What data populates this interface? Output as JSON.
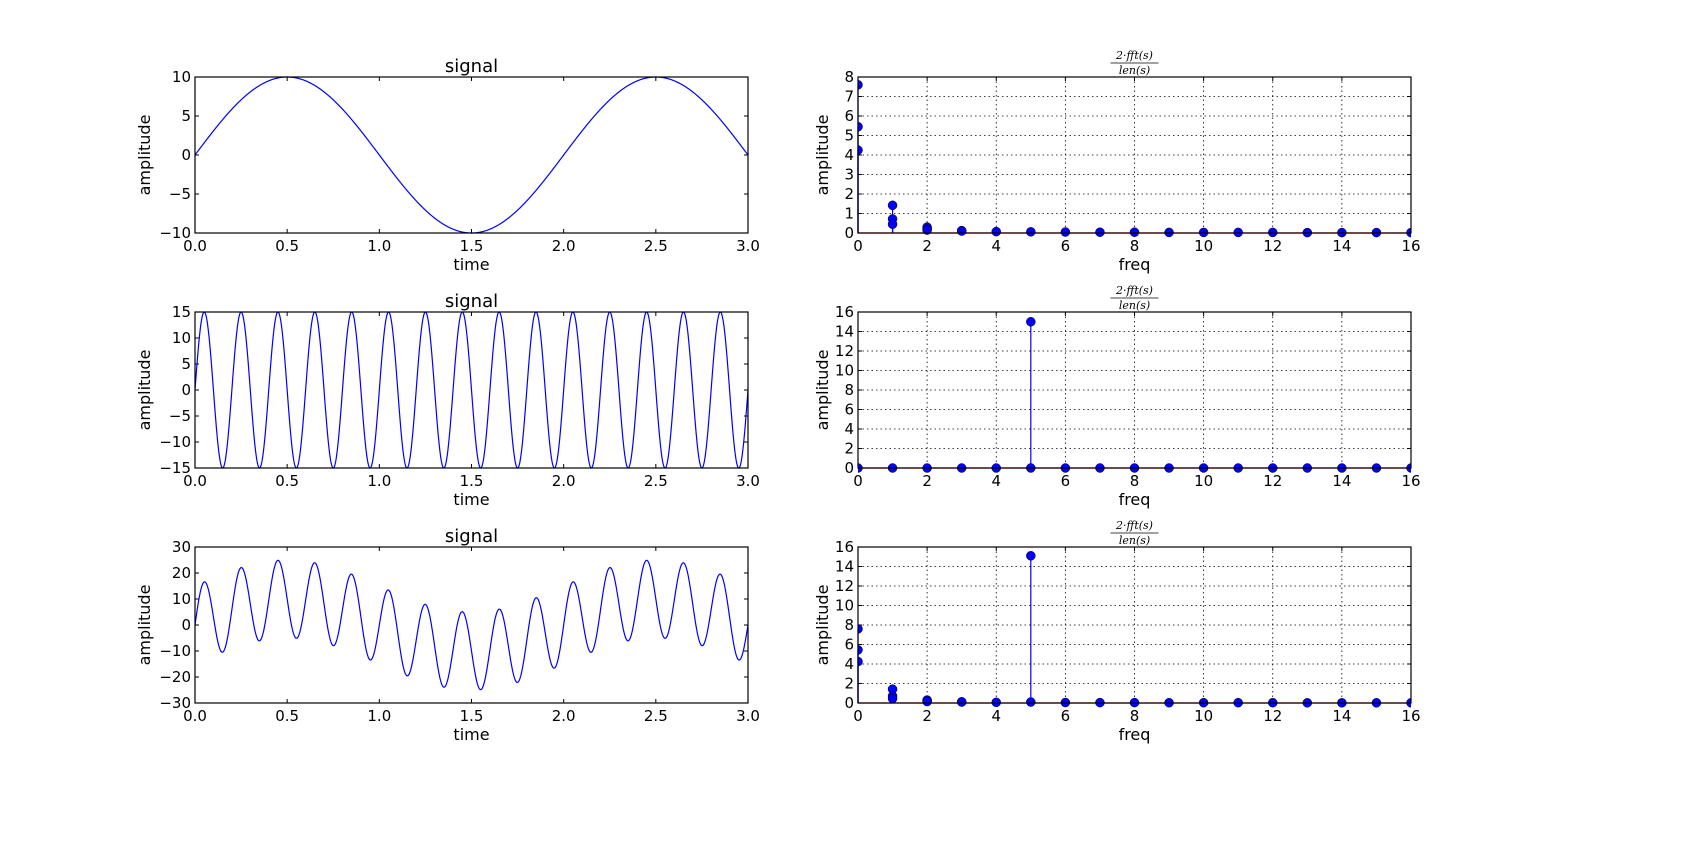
{
  "chart_data": [
    {
      "type": "line",
      "title": "signal",
      "xlabel": "time",
      "ylabel": "amplitude",
      "xlim": [
        0,
        3
      ],
      "ylim": [
        -10,
        10
      ],
      "xticks": [
        "0.0",
        "0.5",
        "1.0",
        "1.5",
        "2.0",
        "2.5",
        "3.0"
      ],
      "yticks": [
        "−10",
        "−5",
        "0",
        "5",
        "10"
      ],
      "ytick_values": [
        -10,
        -5,
        0,
        5,
        10
      ],
      "grid": false,
      "color": "#0000ff",
      "components": [
        {
          "amplitude": 10,
          "freq": 0.5
        }
      ]
    },
    {
      "type": "stem",
      "title_numerator": "2·fft(s)",
      "title_denominator": "len(s)",
      "xlabel": "freq",
      "ylabel": "amplitude",
      "xlim": [
        0,
        16
      ],
      "ylim": [
        0,
        8
      ],
      "xticks": [
        "0",
        "2",
        "4",
        "6",
        "8",
        "10",
        "12",
        "14",
        "16"
      ],
      "yticks": [
        "0",
        "1",
        "2",
        "3",
        "4",
        "5",
        "6",
        "7",
        "8"
      ],
      "ytick_values": [
        0,
        1,
        2,
        3,
        4,
        5,
        6,
        7,
        8
      ],
      "grid": true,
      "color": "#0000ff",
      "baseline_color": "#ff0000",
      "points": [
        [
          0,
          7.6
        ],
        [
          0,
          5.45
        ],
        [
          0,
          4.25
        ],
        [
          1,
          1.42
        ],
        [
          1,
          0.72
        ],
        [
          1,
          0.45
        ],
        [
          2,
          0.3
        ],
        [
          2,
          0.2
        ],
        [
          2,
          0.15
        ],
        [
          3,
          0.12
        ],
        [
          3,
          0.1
        ],
        [
          4,
          0.07
        ],
        [
          5,
          0.06
        ],
        [
          6,
          0.05
        ],
        [
          7,
          0.04
        ],
        [
          8,
          0.04
        ],
        [
          9,
          0.03
        ],
        [
          10,
          0.03
        ],
        [
          11,
          0.03
        ],
        [
          12,
          0.03
        ],
        [
          13,
          0.02
        ],
        [
          14,
          0.02
        ],
        [
          15,
          0.02
        ],
        [
          16,
          0.02
        ]
      ]
    },
    {
      "type": "line",
      "title": "signal",
      "xlabel": "time",
      "ylabel": "amplitude",
      "xlim": [
        0,
        3
      ],
      "ylim": [
        -15,
        15
      ],
      "xticks": [
        "0.0",
        "0.5",
        "1.0",
        "1.5",
        "2.0",
        "2.5",
        "3.0"
      ],
      "yticks": [
        "−15",
        "−10",
        "−5",
        "0",
        "5",
        "10",
        "15"
      ],
      "ytick_values": [
        -15,
        -10,
        -5,
        0,
        5,
        10,
        15
      ],
      "grid": false,
      "color": "#0000ff",
      "components": [
        {
          "amplitude": 15,
          "freq": 5
        }
      ]
    },
    {
      "type": "stem",
      "title_numerator": "2·fft(s)",
      "title_denominator": "len(s)",
      "xlabel": "freq",
      "ylabel": "amplitude",
      "xlim": [
        0,
        16
      ],
      "ylim": [
        0,
        16
      ],
      "xticks": [
        "0",
        "2",
        "4",
        "6",
        "8",
        "10",
        "12",
        "14",
        "16"
      ],
      "yticks": [
        "0",
        "2",
        "4",
        "6",
        "8",
        "10",
        "12",
        "14",
        "16"
      ],
      "ytick_values": [
        0,
        2,
        4,
        6,
        8,
        10,
        12,
        14,
        16
      ],
      "grid": true,
      "color": "#0000ff",
      "baseline_color": "#ff0000",
      "points": [
        [
          0,
          0
        ],
        [
          1,
          0
        ],
        [
          2,
          0
        ],
        [
          3,
          0
        ],
        [
          4,
          0
        ],
        [
          5,
          15.0
        ],
        [
          5,
          0
        ],
        [
          6,
          0
        ],
        [
          7,
          0
        ],
        [
          8,
          0
        ],
        [
          9,
          0
        ],
        [
          10,
          0
        ],
        [
          11,
          0
        ],
        [
          12,
          0
        ],
        [
          13,
          0
        ],
        [
          14,
          0
        ],
        [
          15,
          0
        ],
        [
          16,
          0
        ]
      ]
    },
    {
      "type": "line",
      "title": "signal",
      "xlabel": "time",
      "ylabel": "amplitude",
      "xlim": [
        0,
        3
      ],
      "ylim": [
        -30,
        30
      ],
      "xticks": [
        "0.0",
        "0.5",
        "1.0",
        "1.5",
        "2.0",
        "2.5",
        "3.0"
      ],
      "yticks": [
        "−30",
        "−20",
        "−10",
        "0",
        "10",
        "20",
        "30"
      ],
      "ytick_values": [
        -30,
        -20,
        -10,
        0,
        10,
        20,
        30
      ],
      "grid": false,
      "color": "#0000ff",
      "components": [
        {
          "amplitude": 10,
          "freq": 0.5
        },
        {
          "amplitude": 15,
          "freq": 5
        }
      ]
    },
    {
      "type": "stem",
      "title_numerator": "2·fft(s)",
      "title_denominator": "len(s)",
      "xlabel": "freq",
      "ylabel": "amplitude",
      "xlim": [
        0,
        16
      ],
      "ylim": [
        0,
        16
      ],
      "xticks": [
        "0",
        "2",
        "4",
        "6",
        "8",
        "10",
        "12",
        "14",
        "16"
      ],
      "yticks": [
        "0",
        "2",
        "4",
        "6",
        "8",
        "10",
        "12",
        "14",
        "16"
      ],
      "ytick_values": [
        0,
        2,
        4,
        6,
        8,
        10,
        12,
        14,
        16
      ],
      "grid": true,
      "color": "#0000ff",
      "baseline_color": "#ff0000",
      "points": [
        [
          0,
          7.6
        ],
        [
          0,
          5.45
        ],
        [
          0,
          4.25
        ],
        [
          1,
          1.42
        ],
        [
          1,
          0.72
        ],
        [
          1,
          0.45
        ],
        [
          2,
          0.3
        ],
        [
          2,
          0.2
        ],
        [
          2,
          0.15
        ],
        [
          3,
          0.12
        ],
        [
          3,
          0.1
        ],
        [
          4,
          0.07
        ],
        [
          5,
          15.1
        ],
        [
          5,
          0.1
        ],
        [
          6,
          0.05
        ],
        [
          7,
          0.04
        ],
        [
          8,
          0.04
        ],
        [
          9,
          0.03
        ],
        [
          10,
          0.03
        ],
        [
          11,
          0.03
        ],
        [
          12,
          0.03
        ],
        [
          13,
          0.02
        ],
        [
          14,
          0.02
        ],
        [
          15,
          0.02
        ],
        [
          16,
          0.02
        ]
      ]
    }
  ]
}
